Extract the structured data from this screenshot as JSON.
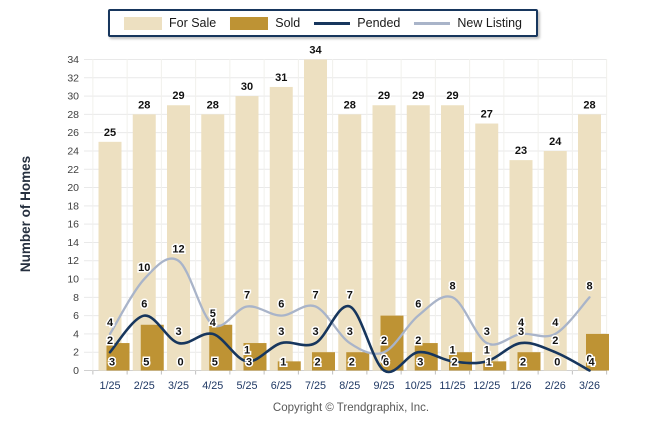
{
  "legend": {
    "items": [
      {
        "label": "For Sale",
        "type": "bar",
        "color": "#EDE0C1"
      },
      {
        "label": "Sold",
        "type": "bar",
        "color": "#BE9334"
      },
      {
        "label": "Pended",
        "type": "line",
        "color": "#17365D"
      },
      {
        "label": "New Listing",
        "type": "line",
        "color": "#A9B4C9"
      }
    ]
  },
  "axes": {
    "y_label": "Number of Homes"
  },
  "footer": {
    "copyright": "Copyright © Trendgraphix, Inc."
  },
  "chart_data": {
    "type": "combo-bar-line",
    "title": "",
    "xlabel": "",
    "ylabel": "Number of Homes",
    "ylim": [
      0,
      34
    ],
    "ytick_step": 2,
    "grid": true,
    "legend_position": "top-center",
    "categories": [
      "1/25",
      "2/25",
      "3/25",
      "4/25",
      "5/25",
      "6/25",
      "7/25",
      "8/25",
      "9/25",
      "10/25",
      "11/25",
      "12/25",
      "1/26",
      "2/26",
      "3/26"
    ],
    "series": [
      {
        "name": "For Sale",
        "type": "bar",
        "color": "#EDE0C1",
        "values": [
          25,
          28,
          29,
          28,
          30,
          31,
          34,
          28,
          29,
          29,
          29,
          27,
          23,
          24,
          28
        ]
      },
      {
        "name": "Sold",
        "type": "bar",
        "color": "#BE9334",
        "values": [
          3,
          5,
          0,
          5,
          3,
          1,
          2,
          2,
          6,
          3,
          2,
          1,
          2,
          0,
          4
        ]
      },
      {
        "name": "Pended",
        "type": "line",
        "color": "#17365D",
        "values": [
          2,
          6,
          3,
          4,
          1,
          3,
          3,
          7,
          0,
          2,
          1,
          1,
          3,
          2,
          0
        ]
      },
      {
        "name": "New Listing",
        "type": "line",
        "color": "#A9B4C9",
        "values": [
          4,
          10,
          12,
          5,
          7,
          6,
          7,
          3,
          2,
          6,
          8,
          3,
          4,
          4,
          8
        ]
      }
    ],
    "colors": {
      "x_tick_label": "#1F3864",
      "y_tick_label": "#404040",
      "data_label": "#111111",
      "gridline": "#e9e9e9",
      "axis_line": "#d0d0d0"
    }
  }
}
